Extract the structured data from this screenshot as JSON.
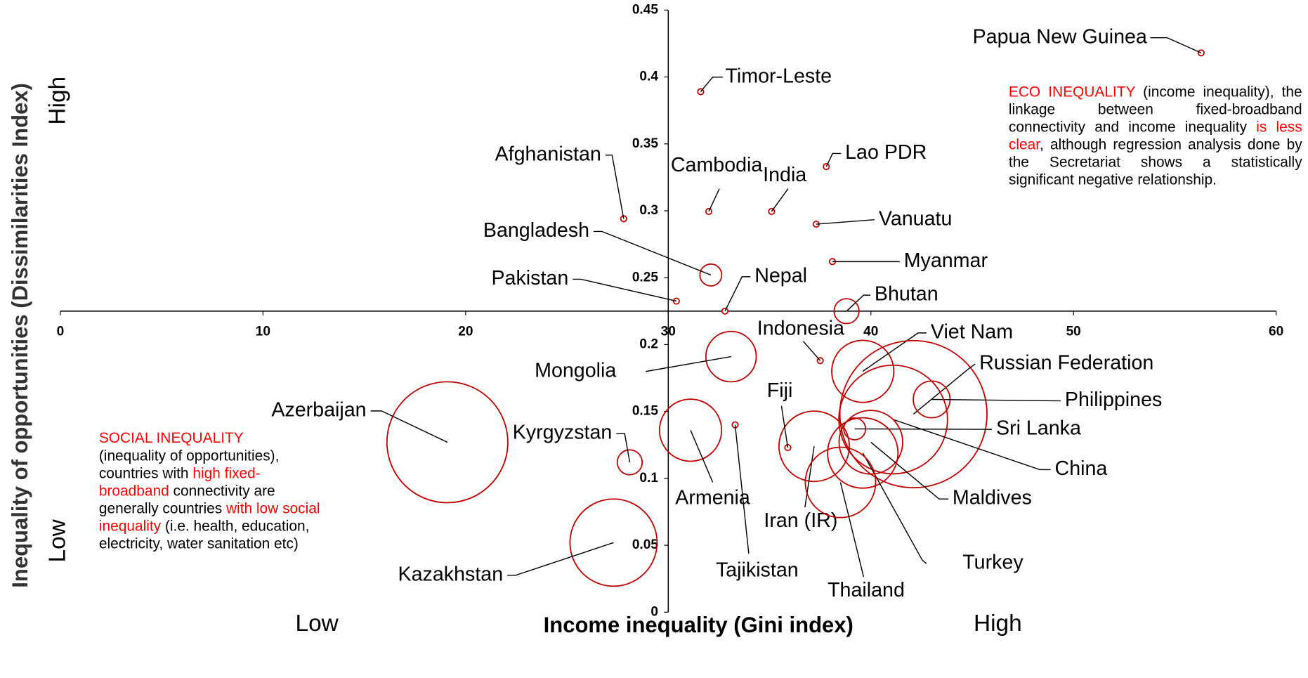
{
  "chart_data": {
    "type": "bubble",
    "x_title": "Income inequality (Gini index)",
    "y_title": "Inequality of opportunities (Dissimilarities Index)",
    "corner_labels": {
      "x_low": "Low",
      "x_high": "High",
      "y_low": "Low",
      "y_high": "High"
    },
    "labels": [
      "Papua New Guinea",
      "Timor-Leste",
      "Afghanistan",
      "Cambodia",
      "India",
      "Lao PDR",
      "Vanuatu",
      "Myanmar",
      "Bangladesh",
      "Pakistan",
      "Nepal",
      "Bhutan",
      "Indonesia",
      "Mongolia",
      "Viet Nam",
      "Russian Federation",
      "Philippines",
      "Sri Lanka",
      "China",
      "Maldives",
      "Turkey",
      "Iran (IR)",
      "Thailand",
      "Fiji",
      "Tajikistan",
      "Armenia",
      "Kyrgyzstan",
      "Azerbaijan",
      "Kazakhstan"
    ],
    "x": [
      56.3,
      31.6,
      27.8,
      32.0,
      35.1,
      37.8,
      37.3,
      38.1,
      32.1,
      30.4,
      32.8,
      38.8,
      37.5,
      33.1,
      39.6,
      42.1,
      43.0,
      39.2,
      41.1,
      40.0,
      39.6,
      37.2,
      38.5,
      35.9,
      33.3,
      31.1,
      28.1,
      19.1,
      27.3
    ],
    "values": [
      0.418,
      0.389,
      0.294,
      0.2995,
      0.2995,
      0.333,
      0.29,
      0.262,
      0.252,
      0.2325,
      0.225,
      0.225,
      0.188,
      0.191,
      0.18,
      0.148,
      0.159,
      0.137,
      0.144,
      0.127,
      0.119,
      0.124,
      0.097,
      0.123,
      0.14,
      0.136,
      0.112,
      0.127,
      0.052
    ],
    "sizes": [
      0.1,
      0.1,
      0.1,
      0.1,
      0.1,
      0.1,
      0.1,
      0.1,
      1.7,
      0.1,
      0.1,
      2.2,
      0.1,
      9,
      13.7,
      77,
      4.8,
      1.7,
      42,
      14.4,
      17.6,
      17.6,
      17.6,
      0.1,
      0.1,
      13.7,
      2.2,
      52,
      27
    ],
    "color": "#c00000",
    "xlim": [
      0,
      60
    ],
    "xticks": [
      0,
      10,
      20,
      30,
      40,
      50,
      60
    ],
    "ylim": [
      0,
      0.45
    ],
    "yticks": [
      0,
      0.05,
      0.1,
      0.15,
      0.2,
      0.25,
      0.3,
      0.35,
      0.4,
      0.45
    ],
    "x_axis_crosses_at": 0.225,
    "y_axis_crosses_at": 30,
    "highlight_color": "#ff0000",
    "annotations": [
      {
        "segments": [
          {
            "text": "SOCIAL INEQUALITY",
            "highlight": true
          },
          {
            "text": "(inequality of opportunities), countries with ",
            "highlight": false
          },
          {
            "text": "high fixed-broadband",
            "highlight": true
          },
          {
            "text": " connectivity are generally countries ",
            "highlight": false
          },
          {
            "text": "with low social inequality",
            "highlight": true
          },
          {
            "text": " (i.e. health, education, electricity, water sanitation etc)",
            "highlight": false
          }
        ]
      },
      {
        "segments": [
          {
            "text": "ECO INEQUALITY",
            "highlight": true
          },
          {
            "text": " (income inequality), the linkage between fixed-broadband connectivity and income inequality ",
            "highlight": false
          },
          {
            "text": "is less clear",
            "highlight": true
          },
          {
            "text": ", although regression analysis done by the Secretariat shows a statistically significant negative relationship.",
            "highlight": false
          }
        ]
      }
    ]
  }
}
